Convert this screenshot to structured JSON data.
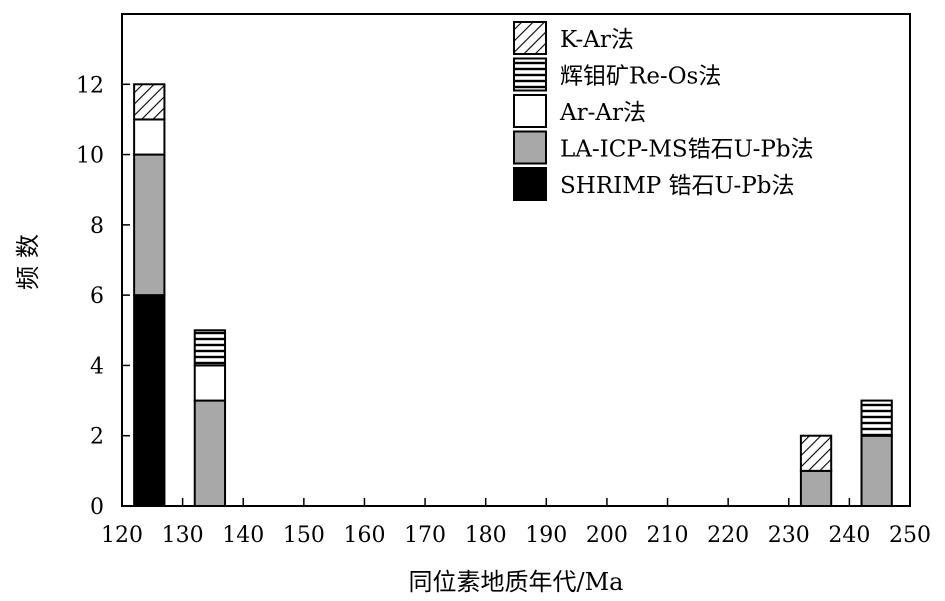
{
  "chart_data": {
    "type": "bar",
    "stacked": true,
    "xlabel": "同位素地质年代/Ma",
    "ylabel": "频 数",
    "xlim": [
      120,
      250
    ],
    "ylim": [
      0,
      14
    ],
    "x_ticks": [
      120,
      130,
      140,
      150,
      160,
      170,
      180,
      190,
      200,
      210,
      220,
      230,
      240,
      250
    ],
    "y_ticks": [
      0,
      2,
      4,
      6,
      8,
      10,
      12
    ],
    "bin_width": 5,
    "bins": [
      {
        "from": 122,
        "to": 127
      },
      {
        "from": 132,
        "to": 137
      },
      {
        "from": 232,
        "to": 237
      },
      {
        "from": 242,
        "to": 247
      }
    ],
    "series": [
      {
        "name": "SHRIMP 锆石U-Pb法",
        "pattern": "solid-black",
        "values": [
          6,
          0,
          0,
          0
        ]
      },
      {
        "name": "LA-ICP-MS锆石U-Pb法",
        "pattern": "solid-gray",
        "values": [
          4,
          3,
          1,
          2
        ]
      },
      {
        "name": "Ar-Ar法",
        "pattern": "white",
        "values": [
          1,
          1,
          0,
          0
        ]
      },
      {
        "name": "辉钼矿Re-Os法",
        "pattern": "horizontal-lines",
        "values": [
          0,
          1,
          0,
          1
        ]
      },
      {
        "name": "K-Ar法",
        "pattern": "diagonal-hatch",
        "values": [
          1,
          0,
          1,
          0
        ]
      }
    ],
    "legend_order": [
      "K-Ar法",
      "辉钼矿Re-Os法",
      "Ar-Ar法",
      "LA-ICP-MS锆石U-Pb法",
      "SHRIMP 锆石U-Pb法"
    ],
    "legend_position": "top-right",
    "grid": false,
    "colors": {
      "black": "#000000",
      "gray": "#a8a8a8",
      "white": "#ffffff"
    }
  }
}
